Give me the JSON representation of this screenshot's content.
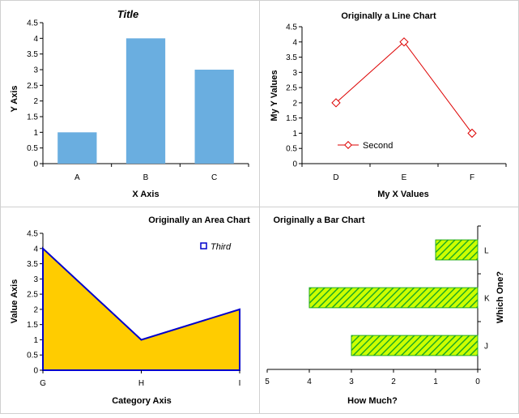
{
  "chart_data": [
    {
      "type": "bar",
      "title": "Title",
      "xlabel": "X Axis",
      "ylabel": "Y Axis",
      "categories": [
        "A",
        "B",
        "C"
      ],
      "values": [
        1,
        4,
        3
      ],
      "ylim": [
        0,
        4.5
      ],
      "yticks": [
        "0",
        "0.5",
        "1",
        "1.5",
        "2",
        "2.5",
        "3",
        "3.5",
        "4",
        "4.5"
      ],
      "colors": {
        "bar": "#6aaee0",
        "xlabel": "#0000ff",
        "ylabel": "#ff0000"
      }
    },
    {
      "type": "line",
      "title": "Originally a Line Chart",
      "xlabel": "My X Values",
      "ylabel": "My Y Values",
      "categories": [
        "D",
        "E",
        "F"
      ],
      "series": [
        {
          "name": "Second",
          "values": [
            2,
            4,
            1
          ]
        }
      ],
      "ylim": [
        0,
        4.5
      ],
      "yticks": [
        "0",
        "0.5",
        "1",
        "1.5",
        "2",
        "2.5",
        "3",
        "3.5",
        "4",
        "4.5"
      ],
      "legend": "bottom-left",
      "colors": {
        "line": "#dd0000"
      }
    },
    {
      "type": "area",
      "title": "Originally an Area Chart",
      "xlabel": "Category Axis",
      "ylabel": "Value Axis",
      "categories": [
        "G",
        "H",
        "I"
      ],
      "series": [
        {
          "name": "Third",
          "values": [
            4,
            1,
            2
          ]
        }
      ],
      "ylim": [
        0,
        4.5
      ],
      "yticks": [
        "0",
        "0.5",
        "1",
        "1.5",
        "2",
        "2.5",
        "3",
        "3.5",
        "4",
        "4.5"
      ],
      "legend": "top-right",
      "colors": {
        "fill": "#ffcc00",
        "outline": "#0000cc"
      }
    },
    {
      "type": "bar",
      "orientation": "horizontal",
      "title": "Originally a Bar Chart",
      "xlabel": "How Much?",
      "ylabel": "Which One?",
      "categories": [
        "J",
        "K",
        "L"
      ],
      "values": [
        3,
        4,
        1
      ],
      "xlim": [
        0,
        5
      ],
      "xreversed": true,
      "xticks": [
        "5",
        "4",
        "3",
        "2",
        "1",
        "0"
      ],
      "colors": {
        "fill": "#ccff00",
        "hatch": "#22aa22"
      }
    }
  ]
}
